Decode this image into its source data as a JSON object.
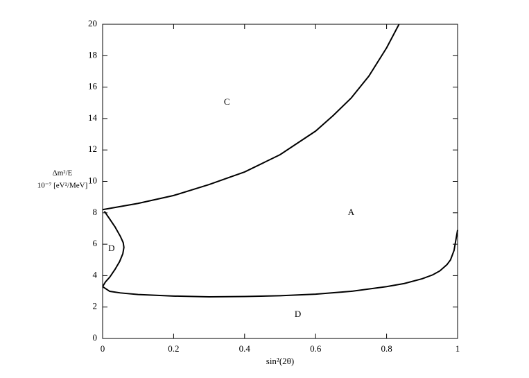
{
  "chart_data": {
    "type": "line",
    "xlabel": "sin²(2θ)",
    "ylabel_lines": [
      "Δm²/E",
      "10⁻⁷ [eV²/MeV]"
    ],
    "xlim": [
      0,
      1
    ],
    "xticks": [
      0,
      0.2,
      0.4,
      0.6,
      0.8,
      1
    ],
    "ylim": [
      0,
      20
    ],
    "yticks": [
      0,
      2,
      4,
      6,
      8,
      10,
      12,
      14,
      16,
      18,
      20
    ],
    "series": [
      {
        "color": "#000000",
        "x": [
          0,
          0.1,
          0.2,
          0.3,
          0.4,
          0.5,
          0.6,
          0.65,
          0.7,
          0.75,
          0.8,
          0.835
        ],
        "values": [
          8.2,
          8.6,
          9.1,
          9.8,
          10.6,
          11.7,
          13.2,
          14.2,
          15.3,
          16.7,
          18.5,
          20
        ]
      },
      {
        "color": "#000000",
        "x": [
          0,
          0.02,
          0.05,
          0.1,
          0.2,
          0.3,
          0.4,
          0.5,
          0.6,
          0.7,
          0.8,
          0.85,
          0.9,
          0.93,
          0.95,
          0.97,
          0.98,
          0.99,
          1
        ],
        "values": [
          3.3,
          3.0,
          2.9,
          2.8,
          2.7,
          2.65,
          2.67,
          2.72,
          2.82,
          3.0,
          3.3,
          3.5,
          3.8,
          4.05,
          4.3,
          4.7,
          5.0,
          5.6,
          6.9
        ]
      },
      {
        "color": "#000000",
        "x": [
          0.005,
          0.02,
          0.035,
          0.05,
          0.058,
          0.06,
          0.057,
          0.048,
          0.035,
          0.02,
          0.008,
          0
        ],
        "values": [
          8.1,
          7.6,
          7.1,
          6.5,
          6.1,
          5.8,
          5.4,
          4.9,
          4.4,
          3.9,
          3.6,
          3.3
        ]
      }
    ],
    "annotations": [
      {
        "text": "C",
        "x": 0.35,
        "y": 15
      },
      {
        "text": "A",
        "x": 0.7,
        "y": 8
      },
      {
        "text": "D",
        "x": 0.025,
        "y": 5.7
      },
      {
        "text": "D",
        "x": 0.55,
        "y": 1.5
      }
    ]
  }
}
